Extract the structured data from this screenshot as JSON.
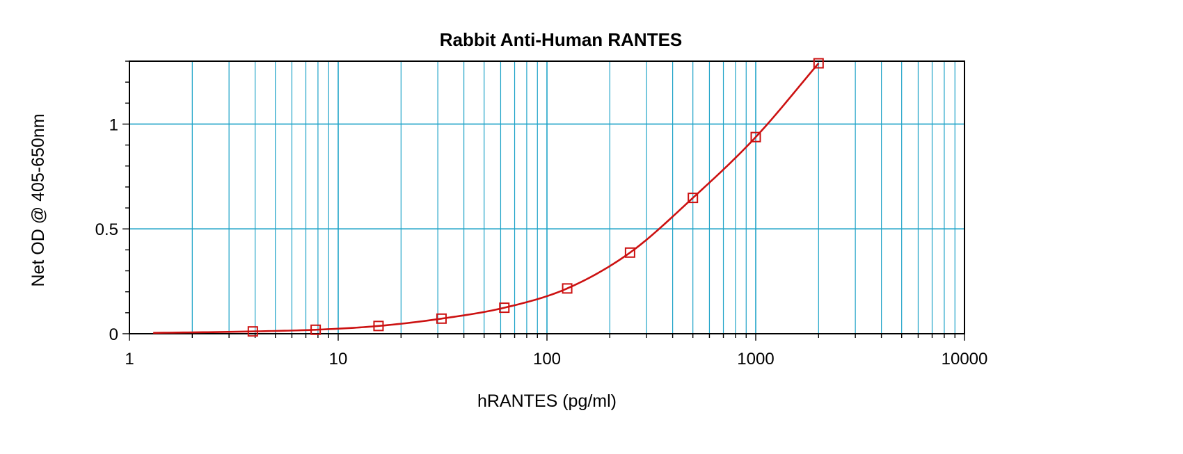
{
  "chart_data": {
    "type": "scatter",
    "title": "Rabbit Anti-Human RANTES",
    "xlabel": "hRANTES (pg/ml)",
    "ylabel": "Net OD @ 405-650nm",
    "x_scale": "log",
    "xlim": [
      1,
      10000
    ],
    "ylim": [
      0,
      1.3
    ],
    "x_ticks": [
      1,
      10,
      100,
      1000,
      10000
    ],
    "x_tick_labels": [
      "1",
      "10",
      "100",
      "1000",
      "10000"
    ],
    "y_ticks": [
      0,
      0.5,
      1
    ],
    "y_tick_labels": [
      "0",
      "0.5",
      "1"
    ],
    "grid": true,
    "series": [
      {
        "marker": "square",
        "x": [
          3.9,
          7.8,
          15.6,
          31.25,
          62.5,
          125,
          250,
          500,
          1000,
          2000
        ],
        "y": [
          0.011,
          0.019,
          0.037,
          0.072,
          0.124,
          0.216,
          0.387,
          0.648,
          0.938,
          1.29
        ]
      }
    ],
    "colors": {
      "grid": "#1ea3c8",
      "series": "#cc1111",
      "axis": "#000000"
    }
  }
}
